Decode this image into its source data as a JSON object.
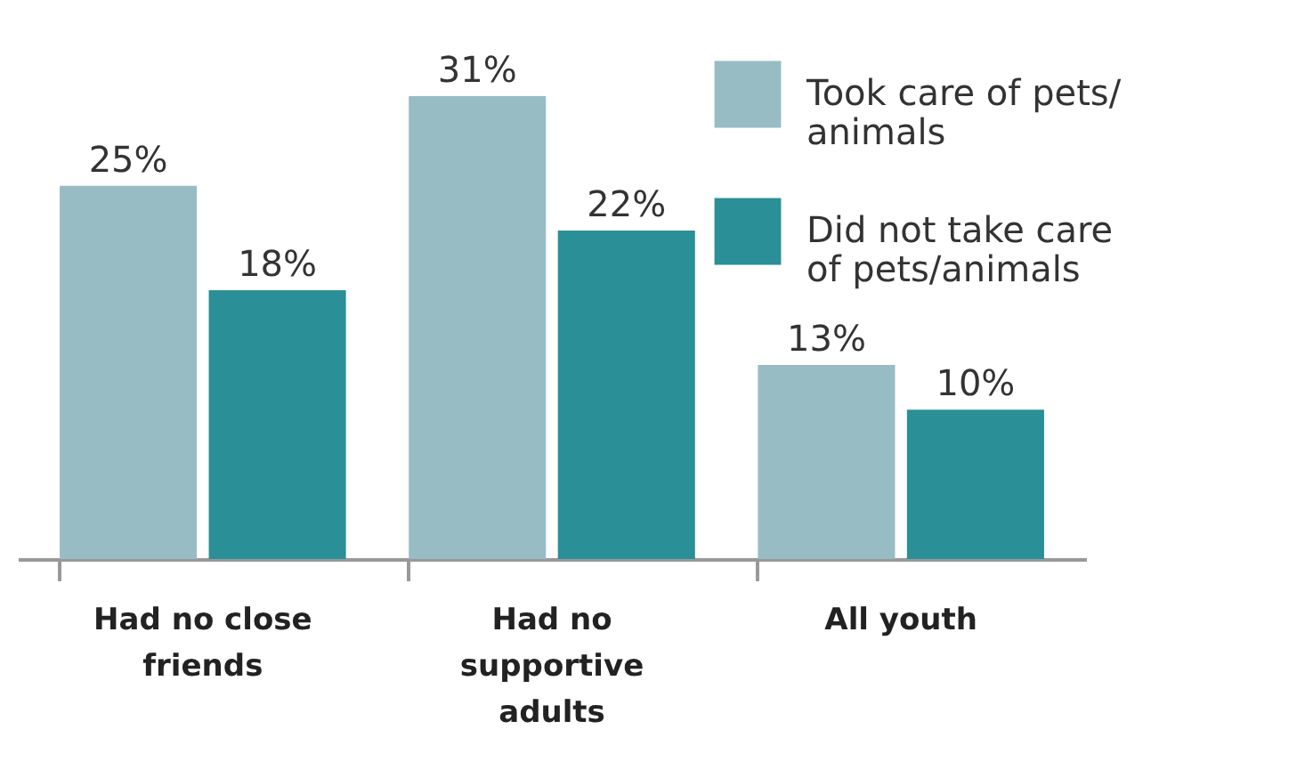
{
  "chart_data": {
    "type": "bar",
    "categories": [
      "Had no close friends",
      "Had no supportive adults",
      "All youth"
    ],
    "series": [
      {
        "name": "Took care of pets/ animals",
        "color": "#97bcc4",
        "values": [
          25,
          31,
          13
        ],
        "value_labels": [
          "25%",
          "31%",
          "13%"
        ]
      },
      {
        "name": "Did not take care of pets/animals",
        "color": "#2a8f96",
        "values": [
          18,
          22,
          10
        ],
        "value_labels": [
          "18%",
          "22%",
          "10%"
        ]
      }
    ],
    "legend": "top right"
  }
}
